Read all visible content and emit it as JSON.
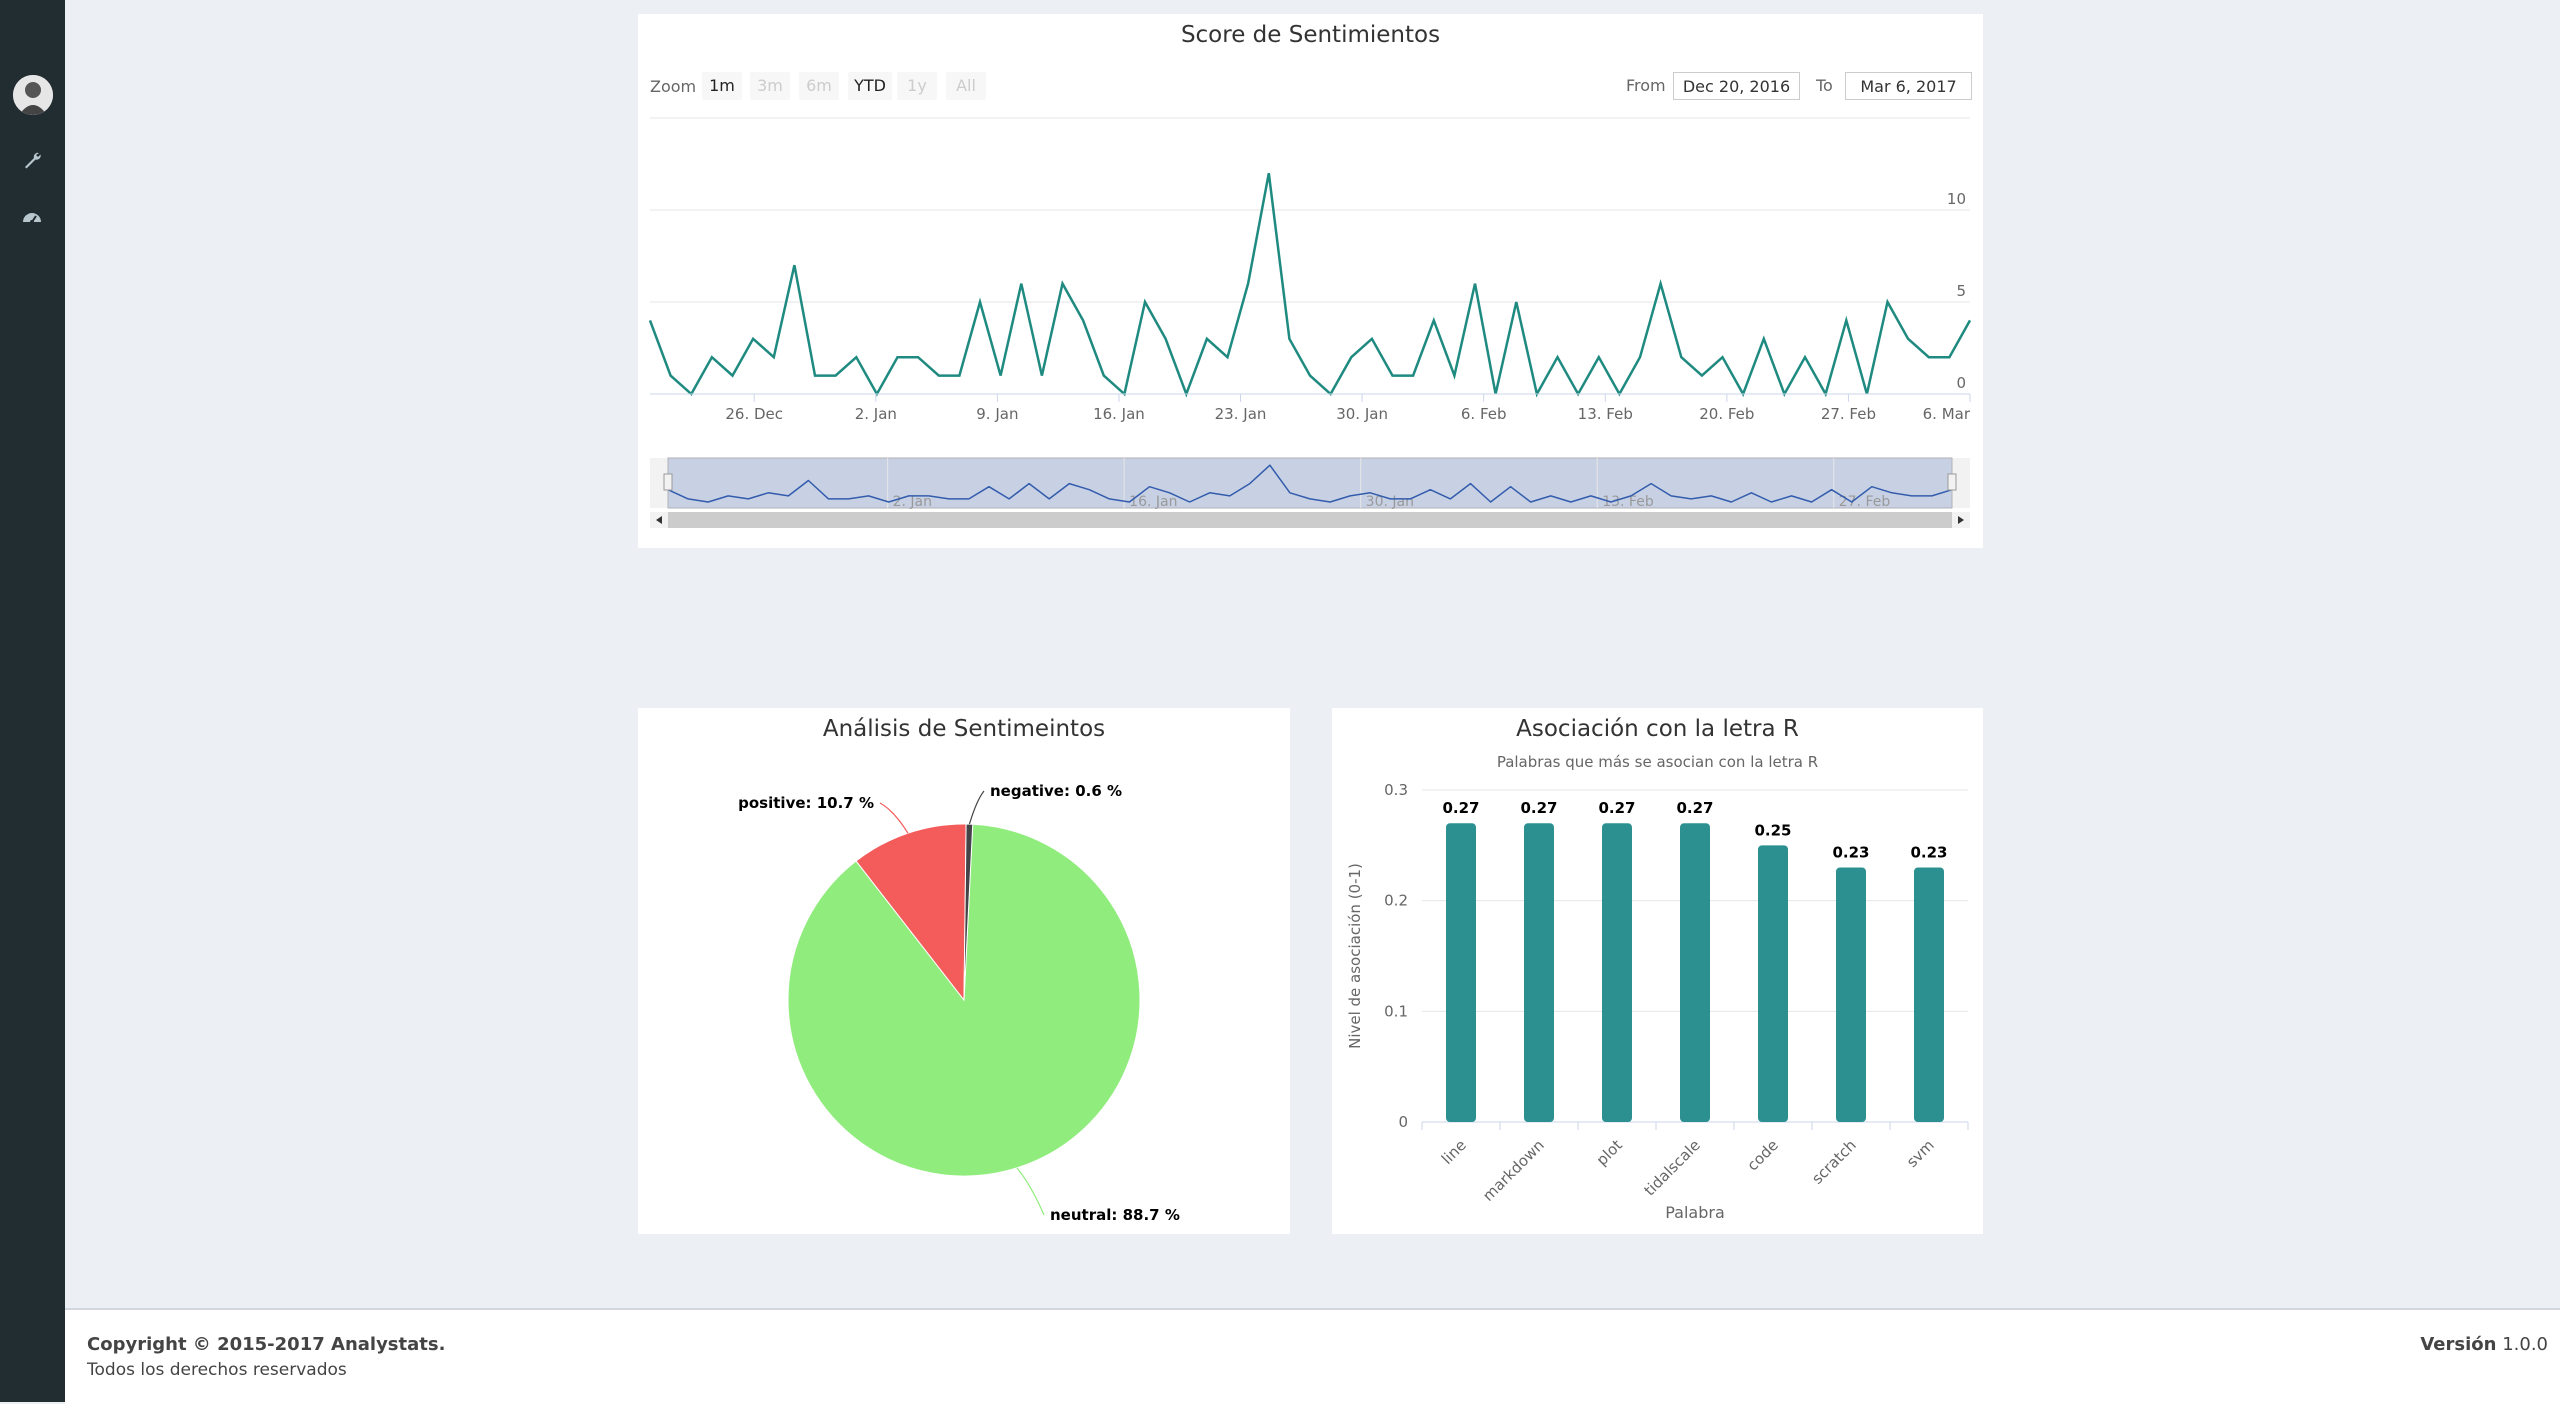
{
  "footer": {
    "copyright": "Copyright © 2015-2017 Analystats.",
    "rights": "Todos los derechos reservados",
    "version_label": "Versión",
    "version_value": "1.0.0"
  },
  "sidebar": {
    "icons": [
      "avatar",
      "wrench-icon",
      "dashboard-icon"
    ]
  },
  "stock": {
    "zoom_label": "Zoom",
    "zoom_buttons": [
      {
        "label": "1m",
        "state": "enabled"
      },
      {
        "label": "3m",
        "state": "disabled"
      },
      {
        "label": "6m",
        "state": "disabled"
      },
      {
        "label": "YTD",
        "state": "enabled"
      },
      {
        "label": "1y",
        "state": "disabled"
      },
      {
        "label": "All",
        "state": "disabled"
      }
    ],
    "from_label": "From",
    "from_value": "Dec 20, 2016",
    "to_label": "To",
    "to_value": "Mar 6, 2017"
  },
  "colors": {
    "line": "#1f8a80",
    "bar": "#2b908f",
    "neutral": "#90ed7d",
    "positive": "#f45b5b",
    "negative": "#434348",
    "navigator": "#335cad"
  },
  "chart_data": [
    {
      "type": "line",
      "title": "Score de Sentimientos",
      "x_range": [
        "2016-12-20",
        "2017-03-06"
      ],
      "x_ticks": [
        "26. Dec",
        "2. Jan",
        "9. Jan",
        "16. Jan",
        "23. Jan",
        "30. Jan",
        "6. Feb",
        "13. Feb",
        "20. Feb",
        "27. Feb",
        "6. Mar"
      ],
      "y_ticks": [
        "0",
        "5",
        "10"
      ],
      "ylim": [
        0,
        15
      ],
      "navigator_labels": [
        "2. Jan",
        "16. Jan",
        "30. Jan",
        "13. Feb",
        "27. Feb"
      ],
      "series": [
        {
          "values": [
            4,
            1,
            0,
            2,
            1,
            3,
            2,
            7,
            1,
            1,
            2,
            0,
            2,
            2,
            1,
            1,
            5,
            1,
            6,
            1,
            6,
            4,
            1,
            0,
            5,
            3,
            0,
            3,
            2,
            6,
            12,
            3,
            1,
            0,
            2,
            3,
            1,
            1,
            4,
            1,
            6,
            0,
            5,
            0,
            2,
            0,
            2,
            0,
            2,
            6,
            2,
            1,
            2,
            0,
            3,
            0,
            2,
            0,
            4,
            0,
            5,
            3,
            2,
            2,
            4
          ]
        }
      ]
    },
    {
      "type": "pie",
      "title": "Análisis de Sentimeintos",
      "slices": [
        {
          "name": "neutral",
          "value": 88.7,
          "label": "neutral: 88.7 %"
        },
        {
          "name": "positive",
          "value": 10.7,
          "label": "positive: 10.7 %"
        },
        {
          "name": "negative",
          "value": 0.6,
          "label": "negative: 0.6 %"
        }
      ]
    },
    {
      "type": "bar",
      "title": "Asociación con la letra R",
      "subtitle": "Palabras que más se asocian con la letra R",
      "xlabel": "Palabra",
      "ylabel": "Nivel de asociación (0-1)",
      "ylim": [
        0,
        0.3
      ],
      "y_ticks": [
        "0",
        "0.1",
        "0.2",
        "0.3"
      ],
      "categories": [
        "line",
        "markdown",
        "plot",
        "tidalscale",
        "code",
        "scratch",
        "svm"
      ],
      "values": [
        0.27,
        0.27,
        0.27,
        0.27,
        0.25,
        0.23,
        0.23
      ],
      "data_labels": [
        "0.27",
        "0.27",
        "0.27",
        "0.27",
        "0.25",
        "0.23",
        "0.23"
      ]
    }
  ]
}
